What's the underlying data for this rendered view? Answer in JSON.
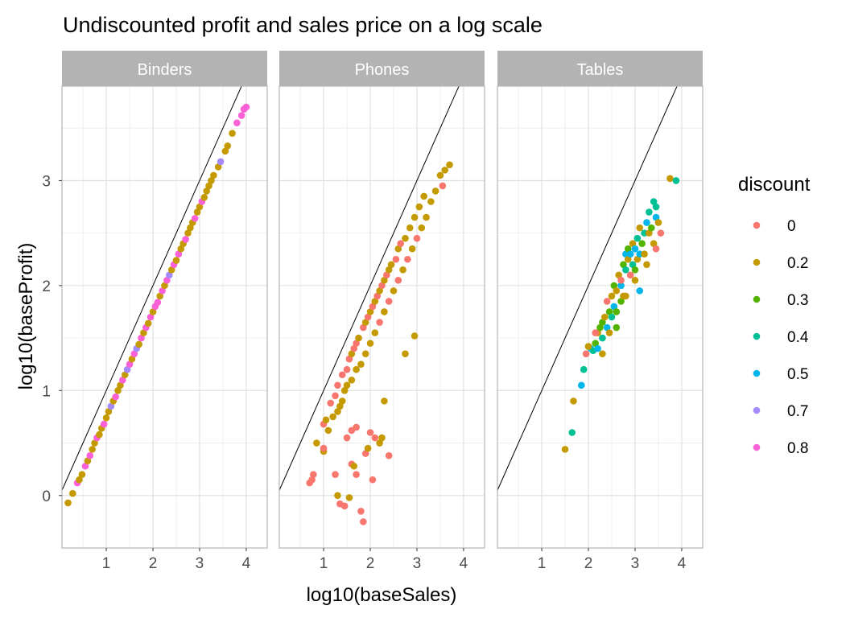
{
  "chart_data": {
    "type": "scatter",
    "title": "Undiscounted profit and  sales price on a log scale",
    "xlabel": "log10(baseSales)",
    "ylabel": "log10(baseProfit)",
    "xlim": [
      0.05,
      4.45
    ],
    "ylim": [
      -0.5,
      3.9
    ],
    "x_ticks": [
      1,
      2,
      3,
      4
    ],
    "y_ticks": [
      0,
      1,
      2,
      3
    ],
    "grid": true,
    "reference_line": {
      "slope": 1,
      "intercept": 0
    },
    "legend": {
      "title": "discount",
      "position": "right",
      "entries": [
        {
          "label": "0",
          "color": "#F8766D"
        },
        {
          "label": "0.2",
          "color": "#C49A00"
        },
        {
          "label": "0.3",
          "color": "#53B400"
        },
        {
          "label": "0.4",
          "color": "#00C094"
        },
        {
          "label": "0.5",
          "color": "#00B6EB"
        },
        {
          "label": "0.7",
          "color": "#A58AFF"
        },
        {
          "label": "0.8",
          "color": "#FB61D7"
        }
      ]
    },
    "facets": [
      {
        "name": "Binders",
        "points": [
          [
            0.18,
            -0.07,
            "0.2"
          ],
          [
            0.28,
            0.02,
            "0.2"
          ],
          [
            0.38,
            0.12,
            "0.8"
          ],
          [
            0.42,
            0.15,
            "0.2"
          ],
          [
            0.48,
            0.2,
            "0.2"
          ],
          [
            0.55,
            0.28,
            "0.8"
          ],
          [
            0.6,
            0.33,
            "0.2"
          ],
          [
            0.65,
            0.38,
            "0.8"
          ],
          [
            0.7,
            0.44,
            "0.2"
          ],
          [
            0.75,
            0.5,
            "0.2"
          ],
          [
            0.8,
            0.55,
            "0.8"
          ],
          [
            0.85,
            0.58,
            "0.2"
          ],
          [
            0.9,
            0.64,
            "0.2"
          ],
          [
            0.95,
            0.68,
            "0.8"
          ],
          [
            1.0,
            0.74,
            "0.2"
          ],
          [
            1.05,
            0.8,
            "0.2"
          ],
          [
            1.1,
            0.85,
            "0.7"
          ],
          [
            1.15,
            0.9,
            "0.2"
          ],
          [
            1.2,
            0.94,
            "0.8"
          ],
          [
            1.25,
            1.0,
            "0.2"
          ],
          [
            1.3,
            1.05,
            "0.2"
          ],
          [
            1.35,
            1.1,
            "0.8"
          ],
          [
            1.4,
            1.15,
            "0.2"
          ],
          [
            1.45,
            1.2,
            "0.7"
          ],
          [
            1.5,
            1.25,
            "0.8"
          ],
          [
            1.55,
            1.3,
            "0.2"
          ],
          [
            1.6,
            1.35,
            "0.8"
          ],
          [
            1.65,
            1.4,
            "0.7"
          ],
          [
            1.7,
            1.44,
            "0.2"
          ],
          [
            1.75,
            1.5,
            "0.8"
          ],
          [
            1.8,
            1.55,
            "0.2"
          ],
          [
            1.85,
            1.6,
            "0.8"
          ],
          [
            1.9,
            1.64,
            "0.2"
          ],
          [
            1.95,
            1.7,
            "0.8"
          ],
          [
            2.0,
            1.75,
            "0.2"
          ],
          [
            2.05,
            1.8,
            "0.8"
          ],
          [
            2.1,
            1.84,
            "0.8"
          ],
          [
            2.15,
            1.9,
            "0.2"
          ],
          [
            2.2,
            1.95,
            "0.8"
          ],
          [
            2.25,
            2.0,
            "0.2"
          ],
          [
            2.3,
            2.05,
            "0.8"
          ],
          [
            2.35,
            2.1,
            "0.7"
          ],
          [
            2.4,
            2.15,
            "0.2"
          ],
          [
            2.45,
            2.2,
            "0.8"
          ],
          [
            2.5,
            2.24,
            "0.2"
          ],
          [
            2.55,
            2.3,
            "0.8"
          ],
          [
            2.6,
            2.35,
            "0.2"
          ],
          [
            2.65,
            2.4,
            "0.2"
          ],
          [
            2.7,
            2.44,
            "0.8"
          ],
          [
            2.75,
            2.5,
            "0.2"
          ],
          [
            2.8,
            2.55,
            "0.2"
          ],
          [
            2.85,
            2.6,
            "0.2"
          ],
          [
            2.9,
            2.64,
            "0.8"
          ],
          [
            2.95,
            2.7,
            "0.2"
          ],
          [
            3.0,
            2.75,
            "0.2"
          ],
          [
            3.05,
            2.8,
            "0.8"
          ],
          [
            3.1,
            2.84,
            "0.2"
          ],
          [
            3.15,
            2.9,
            "0.2"
          ],
          [
            3.2,
            2.95,
            "0.2"
          ],
          [
            3.25,
            3.0,
            "0.2"
          ],
          [
            3.3,
            3.05,
            "0.2"
          ],
          [
            3.4,
            3.13,
            "0.2"
          ],
          [
            3.45,
            3.18,
            "0.7"
          ],
          [
            3.55,
            3.28,
            "0.2"
          ],
          [
            3.6,
            3.33,
            "0.2"
          ],
          [
            3.7,
            3.45,
            "0.2"
          ],
          [
            3.8,
            3.55,
            "0.8"
          ],
          [
            3.9,
            3.62,
            "0.8"
          ],
          [
            3.95,
            3.68,
            "0.8"
          ],
          [
            4.0,
            3.7,
            "0.8"
          ]
        ]
      },
      {
        "name": "Phones",
        "points": [
          [
            0.7,
            0.12,
            "0"
          ],
          [
            0.75,
            0.15,
            "0"
          ],
          [
            0.78,
            0.2,
            "0"
          ],
          [
            0.85,
            0.5,
            "0.2"
          ],
          [
            1.0,
            0.42,
            "0.2"
          ],
          [
            1.0,
            0.45,
            "0"
          ],
          [
            1.0,
            0.68,
            "0"
          ],
          [
            1.05,
            0.72,
            "0.2"
          ],
          [
            1.1,
            0.62,
            "0.2"
          ],
          [
            1.15,
            0.88,
            "0"
          ],
          [
            1.2,
            0.75,
            "0.2"
          ],
          [
            1.25,
            0.95,
            "0"
          ],
          [
            1.3,
            1.05,
            "0"
          ],
          [
            1.3,
            0.8,
            "0.2"
          ],
          [
            1.35,
            0.85,
            "0.2"
          ],
          [
            1.4,
            1.15,
            "0"
          ],
          [
            1.4,
            0.9,
            "0.2"
          ],
          [
            1.45,
            1.0,
            "0.2"
          ],
          [
            1.5,
            1.2,
            "0"
          ],
          [
            1.5,
            1.05,
            "0.2"
          ],
          [
            1.55,
            1.3,
            "0"
          ],
          [
            1.6,
            1.35,
            "0.2"
          ],
          [
            1.6,
            1.1,
            "0.2"
          ],
          [
            1.65,
            1.4,
            "0"
          ],
          [
            1.7,
            1.45,
            "0"
          ],
          [
            1.7,
            1.2,
            "0.2"
          ],
          [
            1.75,
            1.5,
            "0.2"
          ],
          [
            1.8,
            1.25,
            "0.2"
          ],
          [
            1.85,
            1.6,
            "0"
          ],
          [
            1.9,
            1.65,
            "0.2"
          ],
          [
            1.9,
            1.35,
            "0.2"
          ],
          [
            1.95,
            1.7,
            "0"
          ],
          [
            2.0,
            1.75,
            "0.2"
          ],
          [
            2.0,
            1.45,
            "0.2"
          ],
          [
            2.05,
            1.8,
            "0"
          ],
          [
            2.1,
            1.85,
            "0.2"
          ],
          [
            2.1,
            1.55,
            "0.2"
          ],
          [
            2.15,
            1.9,
            "0"
          ],
          [
            2.2,
            1.95,
            "0.2"
          ],
          [
            2.2,
            1.65,
            "0"
          ],
          [
            2.25,
            2.0,
            "0"
          ],
          [
            2.3,
            2.05,
            "0.2"
          ],
          [
            2.3,
            1.75,
            "0.2"
          ],
          [
            2.35,
            2.1,
            "0"
          ],
          [
            2.4,
            2.15,
            "0.2"
          ],
          [
            2.4,
            1.85,
            "0"
          ],
          [
            2.45,
            2.2,
            "0.2"
          ],
          [
            2.5,
            1.95,
            "0.2"
          ],
          [
            2.55,
            2.25,
            "0"
          ],
          [
            2.6,
            2.35,
            "0.2"
          ],
          [
            2.6,
            2.05,
            "0"
          ],
          [
            2.65,
            2.4,
            "0"
          ],
          [
            2.7,
            2.15,
            "0.2"
          ],
          [
            2.75,
            2.45,
            "0.2"
          ],
          [
            2.8,
            2.25,
            "0"
          ],
          [
            2.85,
            2.55,
            "0.2"
          ],
          [
            2.9,
            2.35,
            "0.2"
          ],
          [
            2.95,
            2.65,
            "0.2"
          ],
          [
            3.0,
            2.45,
            "0"
          ],
          [
            3.05,
            2.75,
            "0.2"
          ],
          [
            3.1,
            2.55,
            "0.2"
          ],
          [
            3.15,
            2.85,
            "0.2"
          ],
          [
            3.2,
            2.65,
            "0.2"
          ],
          [
            3.3,
            2.8,
            "0.2"
          ],
          [
            3.4,
            2.9,
            "0.2"
          ],
          [
            3.5,
            3.05,
            "0.2"
          ],
          [
            3.6,
            3.1,
            "0.2"
          ],
          [
            3.7,
            3.15,
            "0.2"
          ],
          [
            3.55,
            2.95,
            "0"
          ],
          [
            1.3,
            0.0,
            "0.2"
          ],
          [
            1.35,
            -0.08,
            "0"
          ],
          [
            1.45,
            -0.1,
            "0"
          ],
          [
            1.55,
            -0.02,
            "0.2"
          ],
          [
            1.6,
            0.3,
            "0"
          ],
          [
            1.65,
            0.28,
            "0.2"
          ],
          [
            1.7,
            0.2,
            "0"
          ],
          [
            1.8,
            -0.15,
            "0"
          ],
          [
            1.85,
            -0.25,
            "0"
          ],
          [
            1.9,
            0.4,
            "0"
          ],
          [
            1.95,
            0.45,
            "0.2"
          ],
          [
            2.0,
            0.6,
            "0"
          ],
          [
            2.05,
            0.15,
            "0"
          ],
          [
            2.1,
            0.55,
            "0"
          ],
          [
            2.2,
            0.5,
            "0.2"
          ],
          [
            2.25,
            0.55,
            "0.2"
          ],
          [
            2.3,
            0.9,
            "0.2"
          ],
          [
            2.4,
            0.38,
            "0"
          ],
          [
            2.75,
            1.35,
            "0.2"
          ],
          [
            2.95,
            1.52,
            "0.2"
          ],
          [
            1.25,
            0.2,
            "0"
          ],
          [
            1.5,
            0.55,
            "0"
          ],
          [
            1.6,
            0.62,
            "0"
          ],
          [
            1.7,
            0.65,
            "0"
          ]
        ]
      },
      {
        "name": "Tables",
        "points": [
          [
            1.5,
            0.44,
            "0.2"
          ],
          [
            1.65,
            0.6,
            "0.4"
          ],
          [
            1.68,
            0.9,
            "0.2"
          ],
          [
            1.85,
            1.05,
            "0.5"
          ],
          [
            1.9,
            1.2,
            "0.4"
          ],
          [
            1.95,
            1.35,
            "0"
          ],
          [
            2.0,
            1.42,
            "0.3"
          ],
          [
            2.05,
            1.4,
            "0.5"
          ],
          [
            2.1,
            1.38,
            "0.4"
          ],
          [
            2.15,
            1.45,
            "0.3"
          ],
          [
            2.2,
            1.55,
            "0.2"
          ],
          [
            2.2,
            1.4,
            "0.5"
          ],
          [
            2.25,
            1.6,
            "0.3"
          ],
          [
            2.3,
            1.65,
            "0.3"
          ],
          [
            2.3,
            1.5,
            "0.4"
          ],
          [
            2.35,
            1.7,
            "0.2"
          ],
          [
            2.4,
            1.6,
            "0.5"
          ],
          [
            2.4,
            1.85,
            "0"
          ],
          [
            2.45,
            1.75,
            "0.3"
          ],
          [
            2.45,
            1.55,
            "0.2"
          ],
          [
            2.5,
            1.9,
            "0.2"
          ],
          [
            2.5,
            1.7,
            "0.4"
          ],
          [
            2.55,
            1.8,
            "0.5"
          ],
          [
            2.55,
            2.0,
            "0.3"
          ],
          [
            2.6,
            1.95,
            "0.2"
          ],
          [
            2.6,
            1.75,
            "0.3"
          ],
          [
            2.65,
            2.1,
            "0.2"
          ],
          [
            2.7,
            2.0,
            "0.5"
          ],
          [
            2.7,
            1.85,
            "0.3"
          ],
          [
            2.75,
            2.2,
            "0.3"
          ],
          [
            2.75,
            1.9,
            "0.2"
          ],
          [
            2.8,
            2.15,
            "0.4"
          ],
          [
            2.8,
            2.3,
            "0.5"
          ],
          [
            2.85,
            2.25,
            "0.2"
          ],
          [
            2.85,
            2.35,
            "0.3"
          ],
          [
            2.9,
            2.3,
            "0.5"
          ],
          [
            2.9,
            2.1,
            "0"
          ],
          [
            2.95,
            2.2,
            "0.4"
          ],
          [
            2.95,
            2.4,
            "0.2"
          ],
          [
            3.0,
            2.35,
            "0.5"
          ],
          [
            3.0,
            2.15,
            "0.3"
          ],
          [
            3.05,
            2.25,
            "0.2"
          ],
          [
            3.05,
            2.45,
            "0.4"
          ],
          [
            3.1,
            2.3,
            "0.5"
          ],
          [
            3.1,
            2.55,
            "0.2"
          ],
          [
            3.15,
            2.4,
            "0.3"
          ],
          [
            3.2,
            2.5,
            "0.4"
          ],
          [
            3.2,
            2.3,
            "0.2"
          ],
          [
            3.25,
            2.6,
            "0.5"
          ],
          [
            3.3,
            2.5,
            "0.2"
          ],
          [
            3.3,
            2.7,
            "0.4"
          ],
          [
            3.35,
            2.55,
            "0.3"
          ],
          [
            3.4,
            2.8,
            "0.4"
          ],
          [
            3.4,
            2.4,
            "0.2"
          ],
          [
            3.45,
            2.65,
            "0.5"
          ],
          [
            3.45,
            2.75,
            "0.4"
          ],
          [
            3.5,
            2.6,
            "0.2"
          ],
          [
            3.55,
            2.5,
            "0"
          ],
          [
            3.75,
            3.02,
            "0.2"
          ],
          [
            3.88,
            3.0,
            "0.4"
          ],
          [
            3.0,
            2.05,
            "0.2"
          ],
          [
            3.1,
            1.95,
            "0.5"
          ],
          [
            2.8,
            1.9,
            "0.2"
          ],
          [
            2.6,
            1.6,
            "0.3"
          ],
          [
            2.3,
            1.35,
            "0.2"
          ],
          [
            2.0,
            1.42,
            "0.2"
          ],
          [
            2.15,
            1.55,
            "0"
          ],
          [
            3.45,
            2.35,
            "0"
          ],
          [
            3.25,
            2.2,
            "0.2"
          ],
          [
            2.7,
            2.05,
            "0"
          ]
        ]
      }
    ]
  }
}
